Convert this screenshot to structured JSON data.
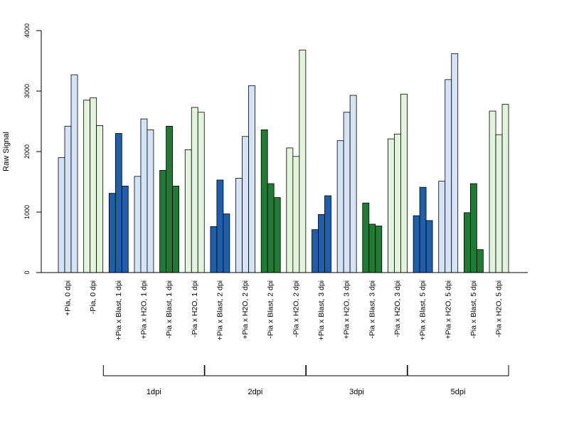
{
  "chart_data": {
    "type": "bar",
    "ylabel": "Raw Signal",
    "ylim": [
      0,
      4000
    ],
    "yticks": [
      "0",
      "1000",
      "2000",
      "3000",
      "4000"
    ],
    "grid": false,
    "bars_per_group": 3,
    "colors": {
      "light_blue": "#d4e3f5",
      "light_green": "#e2f5dc",
      "dark_blue": "#1f5ea8",
      "dark_green": "#207a33",
      "stroke": "#000000"
    },
    "groups": [
      {
        "label": "+Pia, 0 dpi",
        "color": "light_blue",
        "values": [
          1900,
          2420,
          3270
        ]
      },
      {
        "label": "-Pia, 0 dpi",
        "color": "light_green",
        "values": [
          2850,
          2890,
          2430
        ]
      },
      {
        "label": "+Pia x Blast, 1 dpi",
        "color": "dark_blue",
        "values": [
          1310,
          2300,
          1430
        ]
      },
      {
        "label": "+Pia x H2O, 1 dpi",
        "color": "light_blue",
        "values": [
          1590,
          2540,
          2360
        ]
      },
      {
        "label": "-Pia x Blast, 1 dpi",
        "color": "dark_green",
        "values": [
          1690,
          2420,
          1430
        ]
      },
      {
        "label": "-Pia x H2O, 1 dpi",
        "color": "light_green",
        "values": [
          2030,
          2730,
          2650
        ]
      },
      {
        "label": "+Pia x Blast, 2 dpi",
        "color": "dark_blue",
        "values": [
          760,
          1530,
          970
        ]
      },
      {
        "label": "+Pia x H2O, 2 dpi",
        "color": "light_blue",
        "values": [
          1560,
          2250,
          3090
        ]
      },
      {
        "label": "-Pia x Blast, 2 dpi",
        "color": "dark_green",
        "values": [
          2360,
          1470,
          1240
        ]
      },
      {
        "label": "-Pia x H2O, 2 dpi",
        "color": "light_green",
        "values": [
          2060,
          1920,
          3680
        ]
      },
      {
        "label": "+Pia x Blast, 3 dpi",
        "color": "dark_blue",
        "values": [
          710,
          960,
          1270
        ]
      },
      {
        "label": "+Pia x H2O, 3 dpi",
        "color": "light_blue",
        "values": [
          2180,
          2650,
          2930
        ]
      },
      {
        "label": "-Pia x Blast, 3 dpi",
        "color": "dark_green",
        "values": [
          1150,
          800,
          770
        ]
      },
      {
        "label": "-Pia x H2O, 3 dpi",
        "color": "light_green",
        "values": [
          2210,
          2290,
          2950
        ]
      },
      {
        "label": "+Pia x Blast, 5 dpi",
        "color": "dark_blue",
        "values": [
          940,
          1410,
          860
        ]
      },
      {
        "label": "+Pia x H2O, 5 dpi",
        "color": "light_blue",
        "values": [
          1510,
          3190,
          3620
        ]
      },
      {
        "label": "-Pia x Blast, 5 dpi",
        "color": "dark_green",
        "values": [
          990,
          1470,
          380
        ]
      },
      {
        "label": "-Pia x H2O, 5 dpi",
        "color": "light_green",
        "values": [
          2670,
          2280,
          2780
        ]
      }
    ],
    "timepoint_brackets": [
      {
        "label": "1dpi",
        "first_group": 2,
        "last_group": 5
      },
      {
        "label": "2dpi",
        "first_group": 6,
        "last_group": 9
      },
      {
        "label": "3dpi",
        "first_group": 10,
        "last_group": 13
      },
      {
        "label": "5dpi",
        "first_group": 14,
        "last_group": 17
      }
    ]
  }
}
